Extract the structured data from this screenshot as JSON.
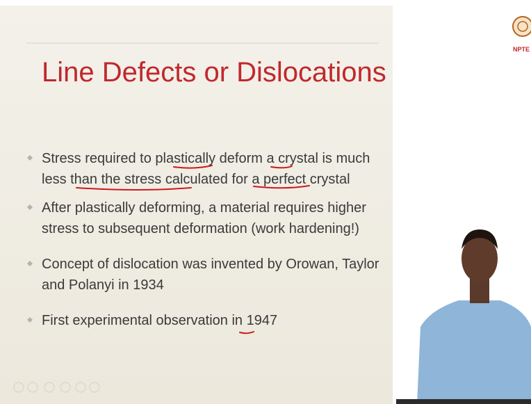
{
  "header": {
    "title": "Line Defects or Dislocations"
  },
  "bullets": [
    {
      "lines": [
        "Stress required to plastically deform a crystal is much",
        "less than the stress calculated for a perfect crystal"
      ]
    },
    {
      "lines": [
        "After plastically deforming, a material requires higher",
        "stress to subsequent deformation (work hardening!)"
      ]
    },
    {
      "lines": [
        "Concept of dislocation was invented by Orowan, Taylor",
        "and Polanyi in 1934"
      ]
    },
    {
      "lines": [
        "First experimental observation in 1947"
      ]
    }
  ],
  "logo": {
    "text": "NPTE"
  }
}
